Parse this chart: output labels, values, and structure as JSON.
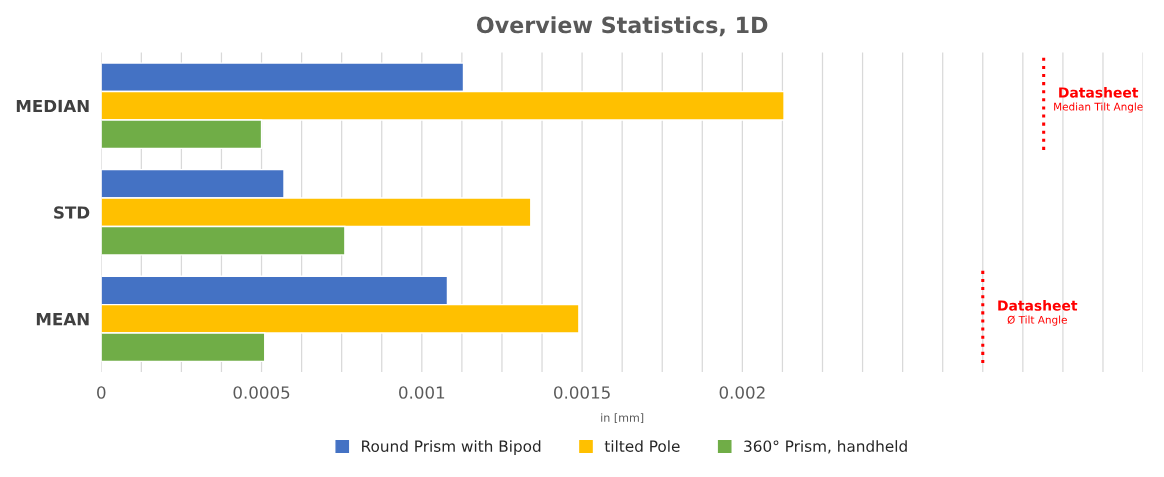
{
  "chart_data": {
    "type": "bar",
    "orientation": "horizontal",
    "title": "Overview Statistics, 1D",
    "xlabel": "in [mm]",
    "categories": [
      "MEDIAN",
      "STD",
      "MEAN"
    ],
    "series": [
      {
        "name": "Round Prism with Bipod",
        "color": "#4472c4",
        "values": [
          0.00113,
          0.00057,
          0.00108
        ]
      },
      {
        "name": "tilted Pole",
        "color": "#ffc000",
        "values": [
          0.00213,
          0.00134,
          0.00149
        ]
      },
      {
        "name": "360° Prism, handheld",
        "color": "#70ad47",
        "values": [
          0.0005,
          0.00076,
          0.00051
        ]
      }
    ],
    "xlim": [
      0,
      0.00325
    ],
    "xticks": [
      0,
      {
        "value": 0.000125,
        "label": null
      },
      {
        "value": 0.00025,
        "label": null
      },
      {
        "value": 0.000375,
        "label": null
      },
      0.0005,
      {
        "value": 0.000625,
        "label": null
      },
      {
        "value": 0.00075,
        "label": null
      },
      {
        "value": 0.000875,
        "label": null
      },
      0.001,
      {
        "value": 0.001125,
        "label": null
      },
      {
        "value": 0.00125,
        "label": null
      },
      {
        "value": 0.001375,
        "label": null
      },
      0.0015,
      {
        "value": 0.001625,
        "label": null
      },
      {
        "value": 0.00175,
        "label": null
      },
      {
        "value": 0.001875,
        "label": null
      },
      0.002,
      {
        "value": 0.002125,
        "label": null
      },
      {
        "value": 0.00225,
        "label": null
      },
      {
        "value": 0.002375,
        "label": null
      },
      {
        "value": 0.0025,
        "label": null
      },
      {
        "value": 0.002625,
        "label": null
      },
      {
        "value": 0.00275,
        "label": null
      },
      {
        "value": 0.002875,
        "label": null
      },
      {
        "value": 0.003,
        "label": null
      },
      {
        "value": 0.003125,
        "label": null
      },
      {
        "value": 0.00325,
        "label": null
      }
    ],
    "ref_lines": [
      {
        "axis": "x",
        "value": 0.00294,
        "label": "Datasheet\nMedian Tilt Angle",
        "color": "#ff0000",
        "line_style": "dotted"
      },
      {
        "axis": "x",
        "value": 0.00275,
        "label": "Datasheet\nØ Tilt Angle",
        "color": "#ff0000",
        "line_style": "dotted"
      }
    ],
    "grid": "x",
    "legend": "bottom"
  }
}
